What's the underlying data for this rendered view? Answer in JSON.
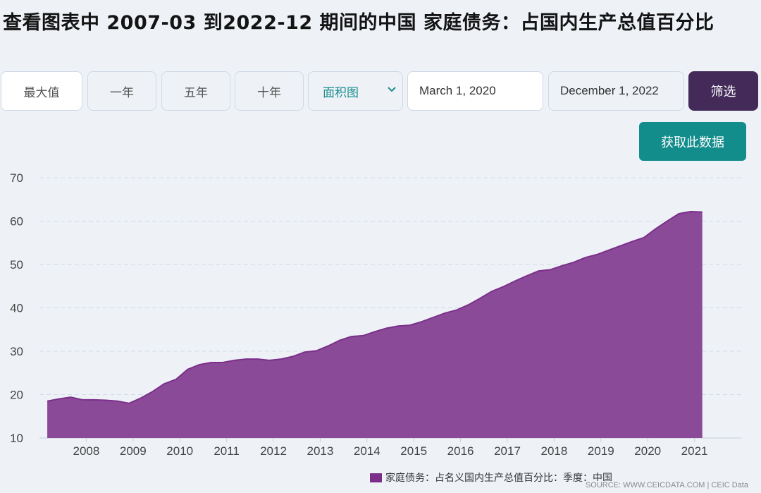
{
  "title": "查看图表中 2007-03 到2022-12 期间的中国 家庭债务：占国内生产总值百分比",
  "range_buttons": [
    "最大值",
    "一年",
    "五年",
    "十年"
  ],
  "chart_type_select": {
    "value": "面积图"
  },
  "start_date": "March 1, 2020",
  "end_date": "December 1, 2022",
  "filter_label": "筛选",
  "get_data_label": "获取此数据",
  "legend_label": "家庭债务：占名义国内生产总值百分比：季度：中国",
  "source_text": "SOURCE: WWW.CEICDATA.COM | CEIC Data",
  "colors": {
    "accent": "#432a59",
    "teal": "#138c8c",
    "area": "#8b4a98"
  },
  "icons": {
    "select": "chevron-down-icon",
    "legend": "legend-swatch"
  },
  "chart_data": {
    "type": "area",
    "series": [
      {
        "name": "家庭债务：占名义国内生产总值百分比：季度：中国",
        "x": [
          "2007-03",
          "2007-06",
          "2007-09",
          "2007-12",
          "2008-03",
          "2008-06",
          "2008-09",
          "2008-12",
          "2009-03",
          "2009-06",
          "2009-09",
          "2009-12",
          "2010-03",
          "2010-06",
          "2010-09",
          "2010-12",
          "2011-03",
          "2011-06",
          "2011-09",
          "2011-12",
          "2012-03",
          "2012-06",
          "2012-09",
          "2012-12",
          "2013-03",
          "2013-06",
          "2013-09",
          "2013-12",
          "2014-03",
          "2014-06",
          "2014-09",
          "2014-12",
          "2015-03",
          "2015-06",
          "2015-09",
          "2015-12",
          "2016-03",
          "2016-06",
          "2016-09",
          "2016-12",
          "2017-03",
          "2017-06",
          "2017-09",
          "2017-12",
          "2018-03",
          "2018-06",
          "2018-09",
          "2018-12",
          "2019-03",
          "2019-06",
          "2019-09",
          "2019-12",
          "2020-03",
          "2020-06",
          "2020-09",
          "2020-12",
          "2021-03",
          "2021-06",
          "2021-09",
          "2021-12"
        ],
        "values": [
          18.5,
          19.0,
          19.4,
          18.8,
          18.8,
          18.7,
          18.5,
          18.0,
          19.2,
          20.7,
          22.5,
          23.5,
          25.8,
          26.9,
          27.4,
          27.4,
          27.9,
          28.2,
          28.2,
          27.9,
          28.2,
          28.8,
          29.8,
          30.1,
          31.2,
          32.5,
          33.4,
          33.6,
          34.5,
          35.3,
          35.8,
          36.0,
          36.8,
          37.8,
          38.8,
          39.5,
          40.7,
          42.2,
          43.8,
          44.9,
          46.2,
          47.4,
          48.5,
          48.8,
          49.7,
          50.5,
          51.6,
          52.3,
          53.3,
          54.3,
          55.3,
          56.2,
          58.2,
          60.0,
          61.7,
          62.2,
          62.1,
          null,
          null,
          null
        ]
      }
    ],
    "x_ticks": [
      "2008",
      "2009",
      "2010",
      "2011",
      "2012",
      "2013",
      "2014",
      "2015",
      "2016",
      "2017",
      "2018",
      "2019",
      "2020",
      "2021"
    ],
    "ylim": [
      10,
      70
    ],
    "y_ticks": [
      10,
      20,
      30,
      40,
      50,
      60,
      70
    ],
    "grid": true,
    "legend_position": "bottom-right"
  }
}
